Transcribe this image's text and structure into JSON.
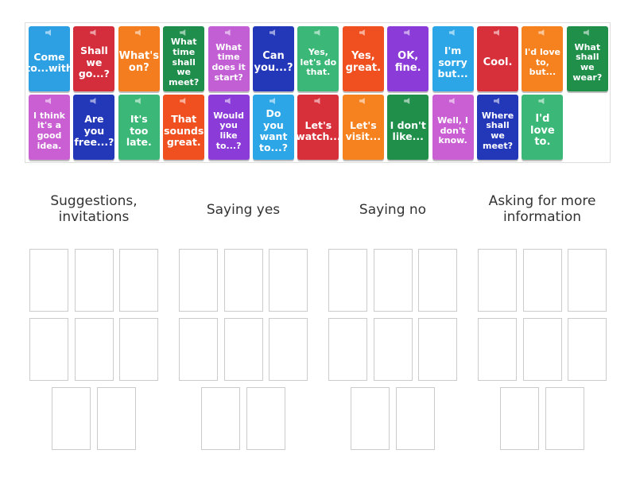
{
  "cards": [
    {
      "text": "Come to...with",
      "color": "#2d9fe3"
    },
    {
      "text": "Shall we go...?",
      "color": "#d42d3b"
    },
    {
      "text": "What's on?",
      "color": "#f47d1f"
    },
    {
      "text": "What time shall we meet?",
      "color": "#1f8e4d"
    },
    {
      "text": "What time does it start?",
      "color": "#c25fd4"
    },
    {
      "text": "Can you...?",
      "color": "#2337b9"
    },
    {
      "text": "Yes, let's do that.",
      "color": "#3bb877"
    },
    {
      "text": "Yes, great.",
      "color": "#f0501f"
    },
    {
      "text": "OK, fine.",
      "color": "#8b3bd7"
    },
    {
      "text": "I'm sorry but...",
      "color": "#2da6e8"
    },
    {
      "text": "Cool.",
      "color": "#d8303b"
    },
    {
      "text": "I'd love to, but...",
      "color": "#f5821f"
    },
    {
      "text": "What shall we wear?",
      "color": "#1f8f4a"
    },
    {
      "text": "I think it's a good idea.",
      "color": "#c95fd3"
    },
    {
      "text": "Are you free...?",
      "color": "#2337b9"
    },
    {
      "text": "It's too late.",
      "color": "#3bb877"
    },
    {
      "text": "That sounds great.",
      "color": "#f0501f"
    },
    {
      "text": "Would you like to...?",
      "color": "#8b3bd7"
    },
    {
      "text": "Do you want to...?",
      "color": "#2da6e8"
    },
    {
      "text": "Let's watch...",
      "color": "#d8303b"
    },
    {
      "text": "Let's visit...",
      "color": "#f5821f"
    },
    {
      "text": "I don't like...",
      "color": "#1f8f4a"
    },
    {
      "text": "Well, I don't know.",
      "color": "#c95fd3"
    },
    {
      "text": "Where shall we meet?",
      "color": "#2337b9"
    },
    {
      "text": "I'd love to.",
      "color": "#3bb877"
    }
  ],
  "groups": [
    {
      "title": "Suggestions, invitations"
    },
    {
      "title": "Saying yes"
    },
    {
      "title": "Saying no"
    },
    {
      "title": "Asking for more information"
    }
  ]
}
